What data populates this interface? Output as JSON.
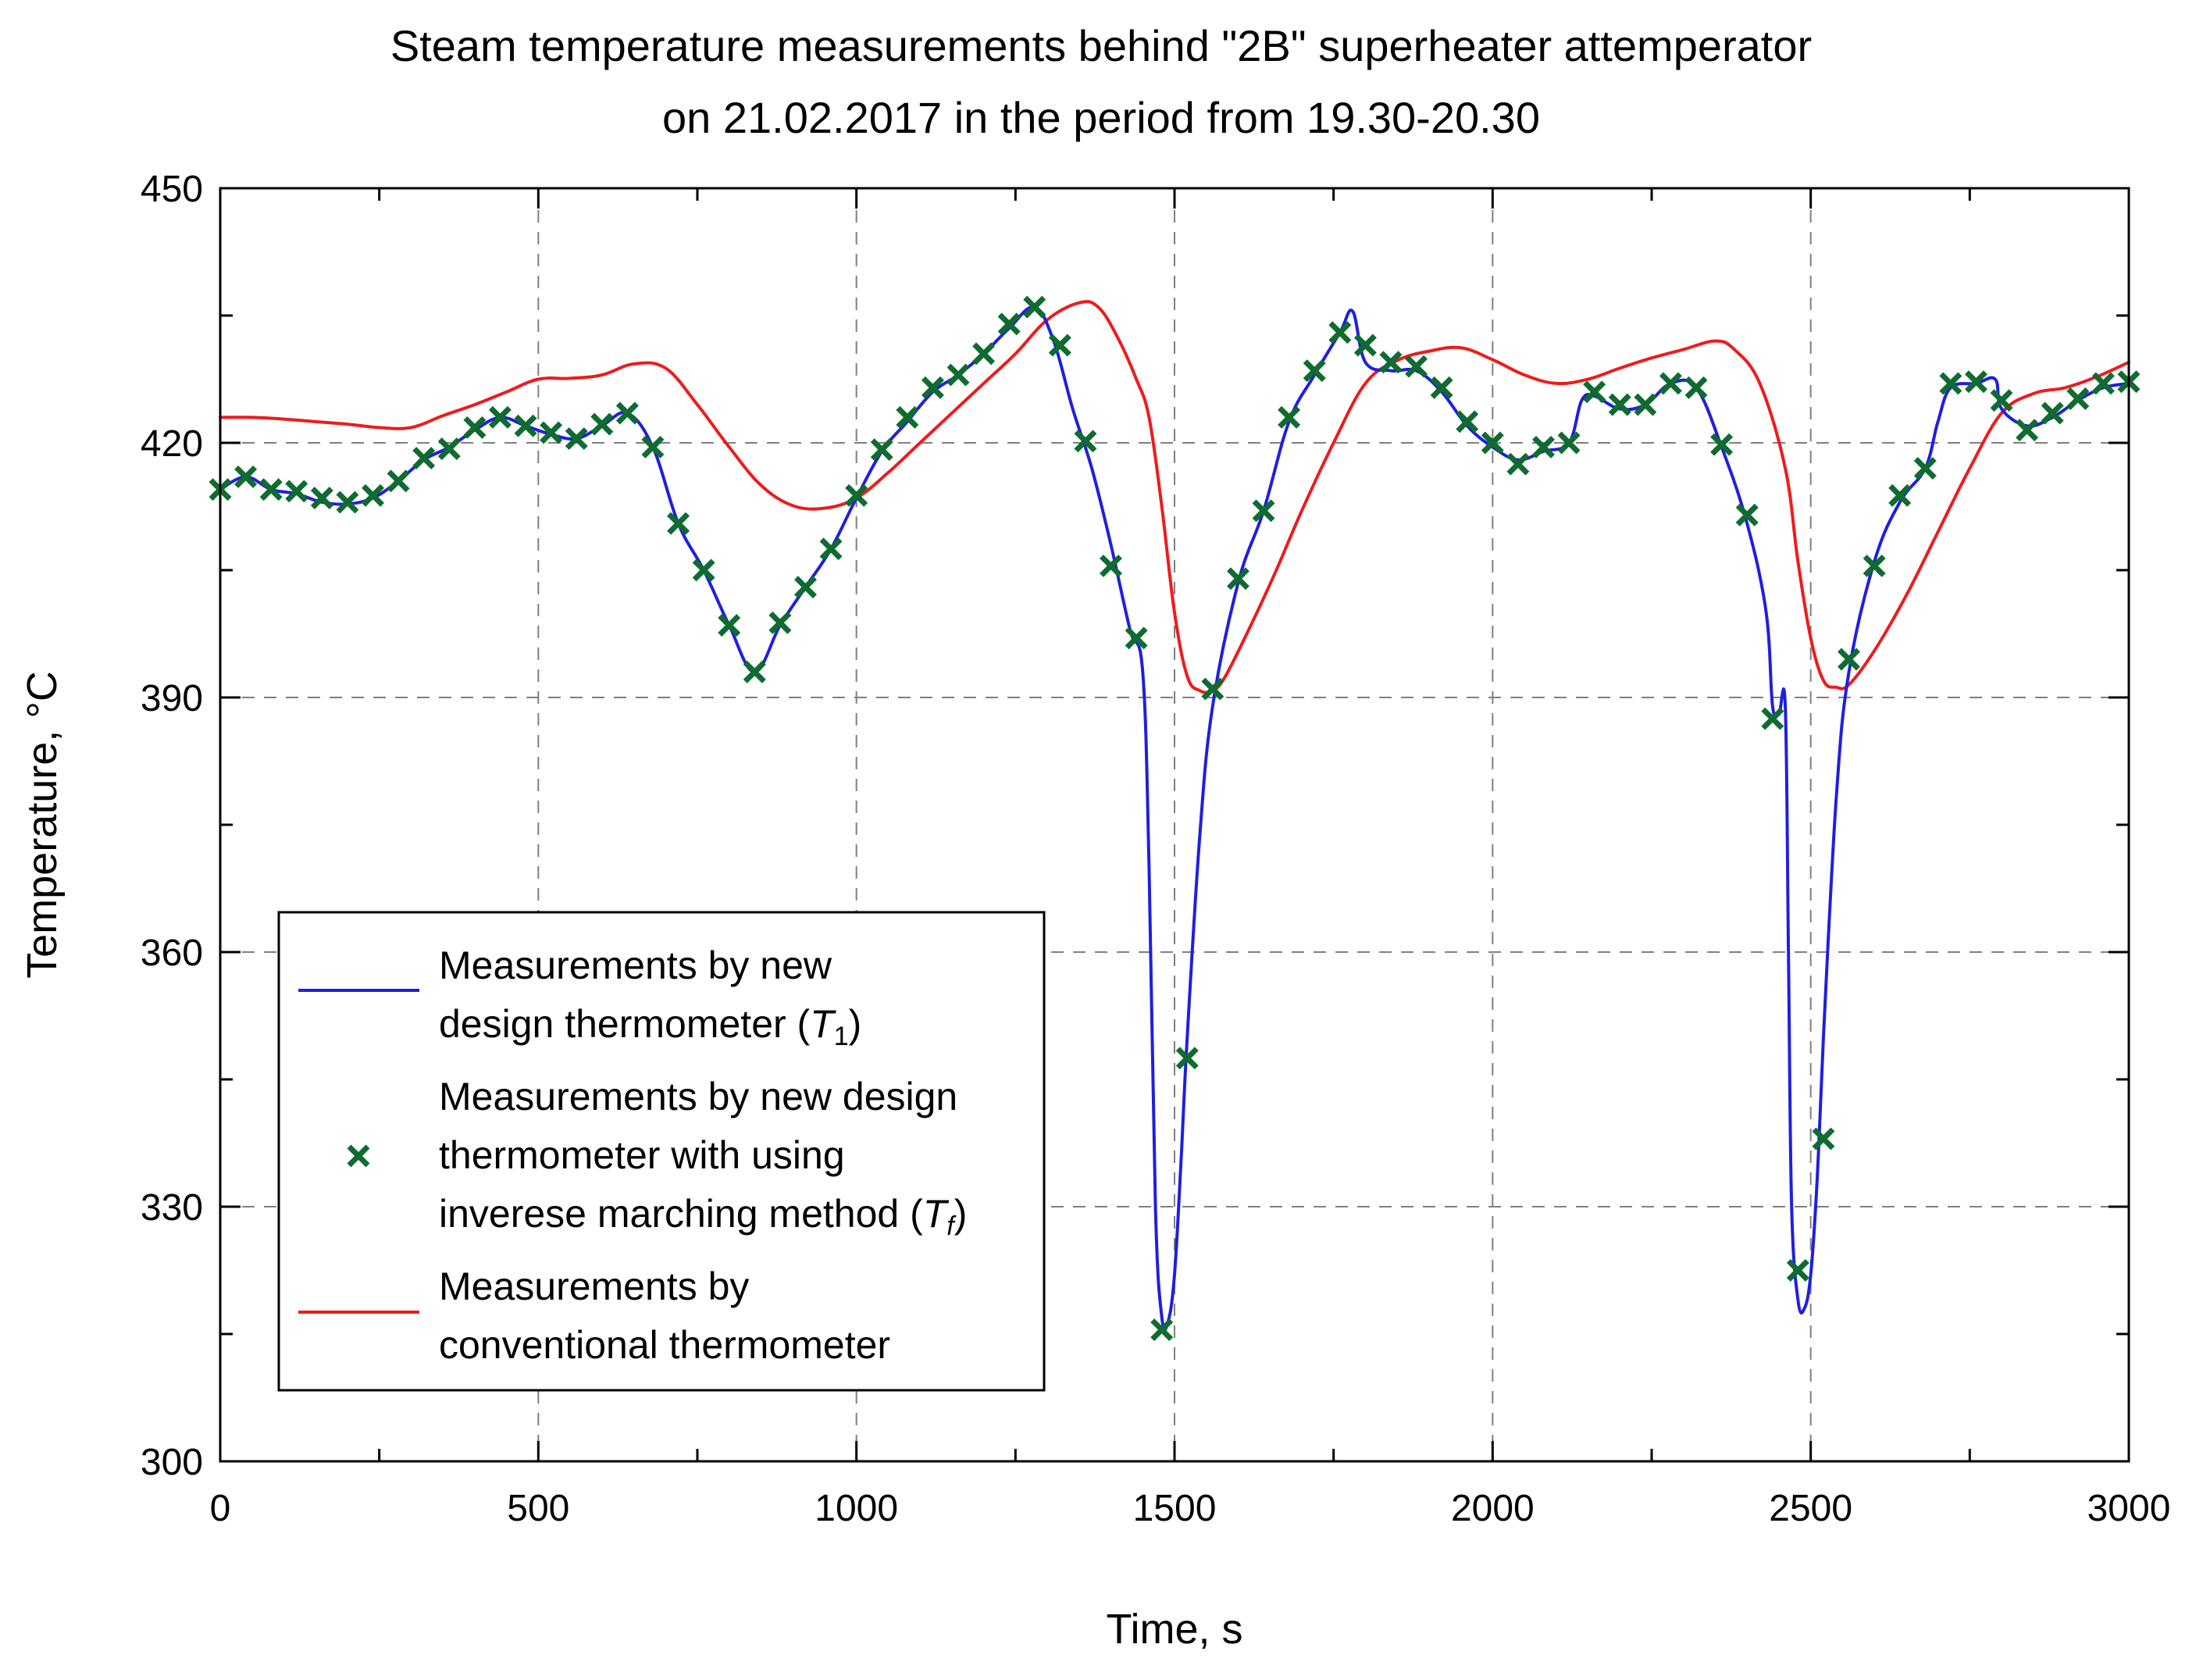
{
  "chart_data": {
    "type": "line",
    "title_line1": "Steam temperature measurements behind \"2B\" superheater attemperator",
    "title_line2": "on 21.02.2017 in the period from 19.30-20.30",
    "xlabel": "Time, s",
    "ylabel": "Temperature, °C",
    "xlim": [
      0,
      3000
    ],
    "ylim": [
      300,
      450
    ],
    "x_ticks": [
      0,
      500,
      1000,
      1500,
      2000,
      2500,
      3000
    ],
    "y_ticks": [
      300,
      330,
      360,
      390,
      420,
      450
    ],
    "x_tick_labels": [
      "0",
      "500",
      "1000",
      "1500",
      "2000",
      "2500",
      "3000"
    ],
    "y_tick_labels": [
      "300",
      "330",
      "360",
      "390",
      "420",
      "450"
    ],
    "grid": true,
    "legend_position": "lower-left",
    "legend": {
      "blue": {
        "line1": "Measurements by new",
        "line2_prefix": "design thermometer (",
        "symbol": "T",
        "subscript": "1",
        "suffix": ")"
      },
      "markers": {
        "line1": "Measurements by new design",
        "line2": "thermometer with using",
        "line3_prefix": "inverese marching method (",
        "symbol": "T",
        "subscript": "f",
        "suffix": ")"
      },
      "red": {
        "line1": "Measurements by",
        "line2": "conventional thermometer"
      }
    },
    "series": [
      {
        "name": "Measurements by new design thermometer (T1)",
        "style": "line",
        "color": "#1f1fe0",
        "x": [
          0,
          40,
          80,
          120,
          160,
          200,
          240,
          280,
          320,
          360,
          400,
          440,
          480,
          520,
          560,
          600,
          640,
          680,
          720,
          760,
          800,
          840,
          880,
          920,
          960,
          1000,
          1040,
          1080,
          1120,
          1160,
          1200,
          1240,
          1280,
          1310,
          1340,
          1370,
          1400,
          1430,
          1450,
          1460,
          1470,
          1480,
          1490,
          1500,
          1510,
          1520,
          1540,
          1560,
          1600,
          1640,
          1680,
          1720,
          1760,
          1780,
          1800,
          1840,
          1880,
          1920,
          1960,
          2000,
          2040,
          2080,
          2120,
          2140,
          2160,
          2200,
          2240,
          2280,
          2320,
          2360,
          2400,
          2430,
          2440,
          2450,
          2460,
          2465,
          2470,
          2480,
          2490,
          2500,
          2510,
          2520,
          2540,
          2560,
          2600,
          2640,
          2680,
          2700,
          2720,
          2760,
          2790,
          2800,
          2840,
          2880,
          2920,
          2960,
          3000
        ],
        "y": [
          414.5,
          416,
          414.5,
          414,
          413,
          412.8,
          413.5,
          415.5,
          418,
          419.5,
          421.5,
          423,
          422,
          421,
          420.5,
          422,
          423.5,
          419.5,
          410.5,
          405,
          398.5,
          393,
          398.5,
          403,
          407.5,
          413.5,
          419,
          422.5,
          426,
          428,
          430.5,
          433.5,
          436,
          432,
          424,
          417,
          408,
          398,
          393,
          370,
          330,
          317,
          316.5,
          322,
          335,
          350,
          374,
          389,
          403.5,
          412,
          422.5,
          428,
          433,
          435.5,
          429.5,
          428.5,
          428.5,
          426,
          422,
          419.5,
          418,
          419,
          420,
          425,
          425.5,
          424,
          424.5,
          427,
          426.5,
          419.5,
          410.5,
          400,
          389,
          388,
          389,
          360,
          330,
          319,
          318,
          322,
          333,
          350,
          378,
          393,
          406,
          413,
          417,
          422.5,
          426.5,
          427,
          427.5,
          424,
          422,
          423,
          425,
          426.5,
          427
        ]
      },
      {
        "name": "Measurements by new design thermometer with using inverese marching method (Tf)",
        "style": "marker",
        "marker": "x",
        "color": "#0f6b30",
        "x": [
          0,
          40,
          80,
          120,
          160,
          200,
          240,
          280,
          320,
          360,
          400,
          440,
          480,
          520,
          560,
          600,
          640,
          680,
          720,
          760,
          800,
          840,
          880,
          920,
          960,
          1000,
          1040,
          1080,
          1120,
          1160,
          1200,
          1240,
          1280,
          1320,
          1360,
          1400,
          1440,
          1480,
          1520,
          1560,
          1600,
          1640,
          1680,
          1720,
          1760,
          1800,
          1840,
          1880,
          1920,
          1960,
          2000,
          2040,
          2080,
          2120,
          2160,
          2200,
          2240,
          2280,
          2320,
          2360,
          2400,
          2440,
          2480,
          2520,
          2560,
          2600,
          2640,
          2680,
          2720,
          2760,
          2800,
          2840,
          2880,
          2920,
          2960,
          3000
        ],
        "y": [
          414.5,
          416,
          414.5,
          414.3,
          413.5,
          413,
          413.8,
          415.5,
          418.2,
          419.3,
          421.8,
          423,
          422,
          421.2,
          420.5,
          422.2,
          423.5,
          419.5,
          410.5,
          405,
          398.5,
          393,
          398.8,
          403,
          407.5,
          413.8,
          419.2,
          423,
          426.5,
          428,
          430.5,
          434,
          436,
          431.5,
          420.2,
          405.5,
          397,
          315.5,
          347.5,
          391,
          404,
          412,
          423,
          428.5,
          433,
          431.5,
          429.5,
          429,
          426.5,
          422.5,
          420,
          417.5,
          419.5,
          420,
          426,
          424.5,
          424.5,
          427,
          426.5,
          419.8,
          411.5,
          387.5,
          322.5,
          338,
          394.5,
          405.5,
          413.8,
          417,
          427,
          427.2,
          425,
          421.5,
          423.5,
          425.2,
          427,
          427.2
        ]
      },
      {
        "name": "Measurements by conventional thermometer",
        "style": "line",
        "color": "#ee1b1b",
        "x": [
          0,
          50,
          100,
          150,
          200,
          250,
          300,
          350,
          400,
          450,
          500,
          550,
          600,
          650,
          700,
          750,
          800,
          850,
          900,
          950,
          1000,
          1050,
          1100,
          1150,
          1200,
          1250,
          1300,
          1350,
          1380,
          1410,
          1440,
          1460,
          1480,
          1500,
          1520,
          1540,
          1560,
          1580,
          1620,
          1660,
          1700,
          1750,
          1800,
          1850,
          1900,
          1950,
          2000,
          2050,
          2100,
          2150,
          2200,
          2250,
          2300,
          2350,
          2380,
          2420,
          2460,
          2480,
          2500,
          2520,
          2540,
          2560,
          2600,
          2650,
          2700,
          2750,
          2800,
          2850,
          2900,
          2950,
          3000
        ],
        "y": [
          423,
          423,
          422.8,
          422.5,
          422.2,
          421.8,
          421.8,
          423.2,
          424.5,
          426,
          427.5,
          427.6,
          428,
          429.3,
          428.8,
          424.5,
          419.5,
          415,
          412.6,
          412.3,
          413.5,
          416.5,
          420,
          423.5,
          427,
          430.5,
          434.5,
          436.5,
          436,
          432.5,
          427.5,
          423,
          412.5,
          400,
          392.5,
          390.8,
          390.8,
          392.5,
          398.5,
          405,
          412,
          420,
          427,
          429.7,
          430.8,
          431.2,
          429.8,
          428,
          427,
          427.5,
          428.8,
          430,
          431,
          432,
          431,
          427,
          417,
          406,
          397,
          392,
          391.2,
          391.5,
          395.5,
          402,
          409.5,
          417,
          423.5,
          425.8,
          426.5,
          427.8,
          429.5
        ]
      }
    ]
  }
}
